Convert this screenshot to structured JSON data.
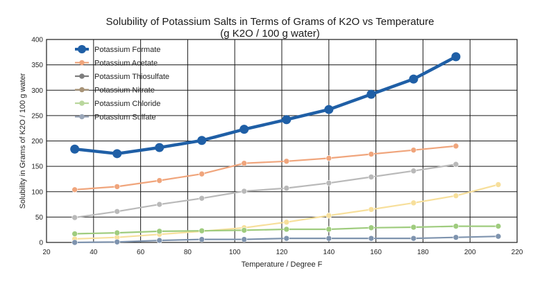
{
  "chart_data": {
    "type": "line",
    "title": "Solubility of Potassium Salts in Terms of Grams of K2O vs Temperature",
    "subtitle": "(g K2O / 100 g water)",
    "xlabel": "Temperature / Degree F",
    "ylabel": "Solubility in Grams of K2O / 100 g water",
    "xlim": [
      20,
      220
    ],
    "ylim": [
      0,
      400
    ],
    "xticks": [
      20,
      40,
      60,
      80,
      100,
      120,
      140,
      160,
      180,
      200,
      220
    ],
    "yticks": [
      0,
      50,
      100,
      150,
      200,
      250,
      300,
      350,
      400
    ],
    "grid": true,
    "legend_position": "top-left",
    "series": [
      {
        "name": "Potassium Formate",
        "color": "#1f5fa6",
        "x": [
          32,
          50,
          68,
          86,
          104,
          122,
          140,
          158,
          176,
          194
        ],
        "values": [
          184,
          175,
          187,
          201,
          223,
          242,
          262,
          292,
          322,
          366
        ]
      },
      {
        "name": "Potassium Acetate",
        "color": "#f0a57c",
        "x": [
          32,
          50,
          68,
          86,
          104,
          122,
          140,
          158,
          176,
          194
        ],
        "values": [
          104,
          110,
          122,
          135,
          156,
          160,
          166,
          174,
          182,
          190
        ]
      },
      {
        "name": "Potassium Thiosulfate",
        "color": "#b9b9b9",
        "x": [
          32,
          50,
          68,
          86,
          104,
          122,
          140,
          158,
          176,
          194
        ],
        "values": [
          49,
          61,
          75,
          87,
          101,
          107,
          117,
          129,
          141,
          154
        ]
      },
      {
        "name": "Potassium Nitrate",
        "color": "#f7df9b",
        "x": [
          32,
          50,
          68,
          86,
          104,
          122,
          140,
          158,
          176,
          194,
          212
        ],
        "values": [
          7,
          10,
          16,
          22,
          29,
          40,
          53,
          65,
          78,
          92,
          114
        ]
      },
      {
        "name": "Potassium Chloride",
        "color": "#9fcc7e",
        "x": [
          32,
          50,
          68,
          86,
          104,
          122,
          140,
          158,
          176,
          194,
          212
        ],
        "values": [
          17,
          19,
          22,
          23,
          24,
          26,
          26,
          29,
          30,
          32,
          32
        ]
      },
      {
        "name": "Potassium Sulfate",
        "color": "#7e93ae",
        "x": [
          32,
          50,
          68,
          86,
          104,
          122,
          140,
          158,
          176,
          194,
          212
        ],
        "values": [
          0,
          1,
          4,
          6,
          6,
          8,
          8,
          8,
          8,
          10,
          12
        ]
      }
    ],
    "legend_entries": [
      {
        "name": "Potassium Formate",
        "color": "#1f5fa6"
      },
      {
        "name": "Potassium Acetate",
        "color": "#f0a57c"
      },
      {
        "name": "Potassium Thiosulfate",
        "color": "#7d7d7d"
      },
      {
        "name": "Potassium Nitrate",
        "color": "#a89478"
      },
      {
        "name": "Potassium Chloride",
        "color": "#b9d79d"
      },
      {
        "name": "Potassium Sulfate",
        "color": "#9aa6b8"
      }
    ]
  }
}
